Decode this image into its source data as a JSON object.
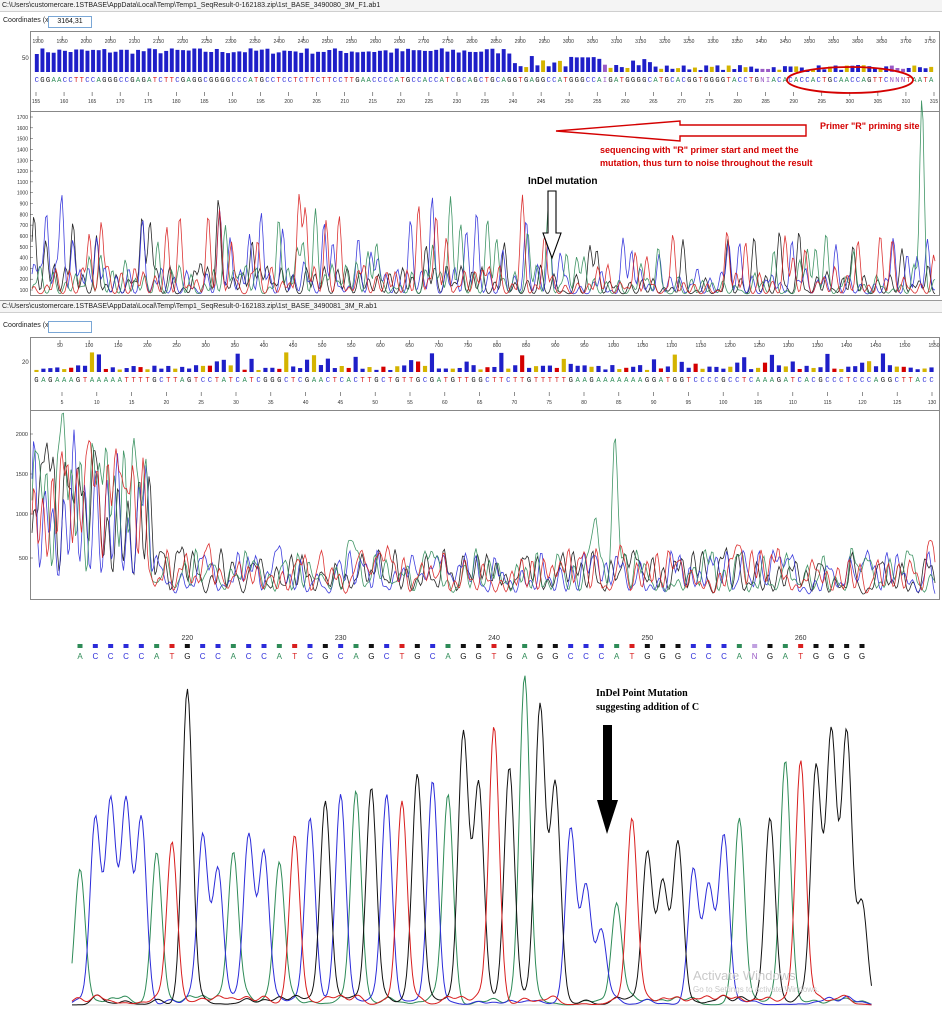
{
  "panel1": {
    "title_path": "C:\\Users\\customercare.1STBASE\\AppData\\Local\\Temp\\Temp1_SeqResult-0-162183.zip\\1st_BASE_3490080_3M_F1.ab1",
    "coord_label": "Coordinates (x,y)",
    "coord_value": "3164,31",
    "scan_ticks": [
      "1900",
      "1950",
      "2000",
      "2050",
      "2100",
      "2150",
      "2200",
      "2250",
      "2300",
      "2350",
      "2400",
      "2450",
      "2500",
      "2550",
      "2600",
      "2650",
      "2700",
      "2750",
      "2800",
      "2850",
      "2900",
      "2950",
      "3000",
      "3050",
      "3100",
      "3150",
      "3200",
      "3250",
      "3300",
      "3350",
      "3400",
      "3450",
      "3500",
      "3550",
      "3600",
      "3650",
      "3700",
      "3750"
    ],
    "qv_label": "50",
    "sequence": "CGGAACCTTCCAGGGCCGAGATCTTCGAGGCGGGGCCCATGCCTCCTCTTCTTCCTTGAACCCCATGCCACCATCGCAGCTGCAGGTGAGGCCATGGGCCAIGATGGGGCATGCACGGTGGGGTACCTGNIACACACCACTGCAACCAGTTCNNNTAATA",
    "base_ticks": [
      "155",
      "160",
      "165",
      "170",
      "175",
      "180",
      "185",
      "190",
      "195",
      "200",
      "205",
      "210",
      "215",
      "220",
      "225",
      "230",
      "235",
      "240",
      "245",
      "250",
      "255",
      "260",
      "265",
      "270",
      "275",
      "280",
      "285",
      "290",
      "295",
      "300",
      "305",
      "310",
      "315"
    ],
    "y_ticks": [
      "1700",
      "1600",
      "1500",
      "1400",
      "1300",
      "1200",
      "1100",
      "1000",
      "900",
      "800",
      "700",
      "600",
      "500",
      "400",
      "300",
      "200",
      "100"
    ],
    "annotation_primer": "Primer \"R\" priming site",
    "annotation_sequencing_line1": "sequencing with \"R\" primer start and meet the",
    "annotation_sequencing_line2": "mutation, thus turn to noise throughout the result",
    "annotation_indel": "InDel mutation"
  },
  "panel2": {
    "title_path": "C:\\Users\\customercare.1STBASE\\AppData\\Local\\Temp\\Temp1_SeqResult-0-162183.zip\\1st_BASE_3490081_3M_R.ab1",
    "coord_label": "Coordinates (x,y)",
    "coord_value": "",
    "scan_ticks": [
      "50",
      "100",
      "150",
      "200",
      "250",
      "300",
      "350",
      "400",
      "450",
      "500",
      "550",
      "600",
      "650",
      "700",
      "750",
      "800",
      "850",
      "900",
      "950",
      "1000",
      "1050",
      "1100",
      "1150",
      "1200",
      "1250",
      "1300",
      "1350",
      "1400",
      "1450",
      "1500",
      "1550"
    ],
    "qv_label": "20",
    "sequence": "GAGAAAGTAAAAATTTTGCTTAGTCCTATCATCGGGCTCGAACTCACTTGCTGTTGCGATGTTGGCTTCTTGTTTTTGAAGAAAAAAAGGATGGTCCCCGCCTCAAAGATCACGCCCTCCCAGGCTTACC",
    "base_ticks": [
      "5",
      "10",
      "15",
      "20",
      "25",
      "30",
      "35",
      "40",
      "45",
      "50",
      "55",
      "60",
      "65",
      "70",
      "75",
      "80",
      "85",
      "90",
      "95",
      "100",
      "105",
      "110",
      "115",
      "120",
      "125",
      "130"
    ],
    "y_ticks": [
      "2000",
      "1500",
      "1000",
      "500"
    ]
  },
  "panel3": {
    "bases": [
      "A",
      "C",
      "C",
      "C",
      "C",
      "A",
      "T",
      "G",
      "C",
      "C",
      "A",
      "C",
      "C",
      "A",
      "T",
      "C",
      "G",
      "C",
      "A",
      "G",
      "C",
      "T",
      "G",
      "C",
      "A",
      "G",
      "G",
      "T",
      "G",
      "A",
      "G",
      "G",
      "C",
      "C",
      "C",
      "A",
      "T",
      "G",
      "G",
      "G",
      "C",
      "C",
      "C",
      "A",
      "N",
      "G",
      "A",
      "T",
      "G",
      "G",
      "G",
      "G"
    ],
    "position_ticks": [
      "220",
      "230",
      "240",
      "250",
      "260"
    ],
    "annotation_line1": "InDel Point Mutation",
    "annotation_line2": "suggesting addition of C",
    "watermark_line1": "Activate Windows",
    "watermark_line2": "Go to Settings to activate Windows."
  },
  "colors": {
    "A": "#2e8b57",
    "C": "#2b2bd9",
    "G": "#111111",
    "T": "#d81e1e",
    "annotation_red": "#d40000",
    "qv_bar": "#1f1fc8"
  }
}
